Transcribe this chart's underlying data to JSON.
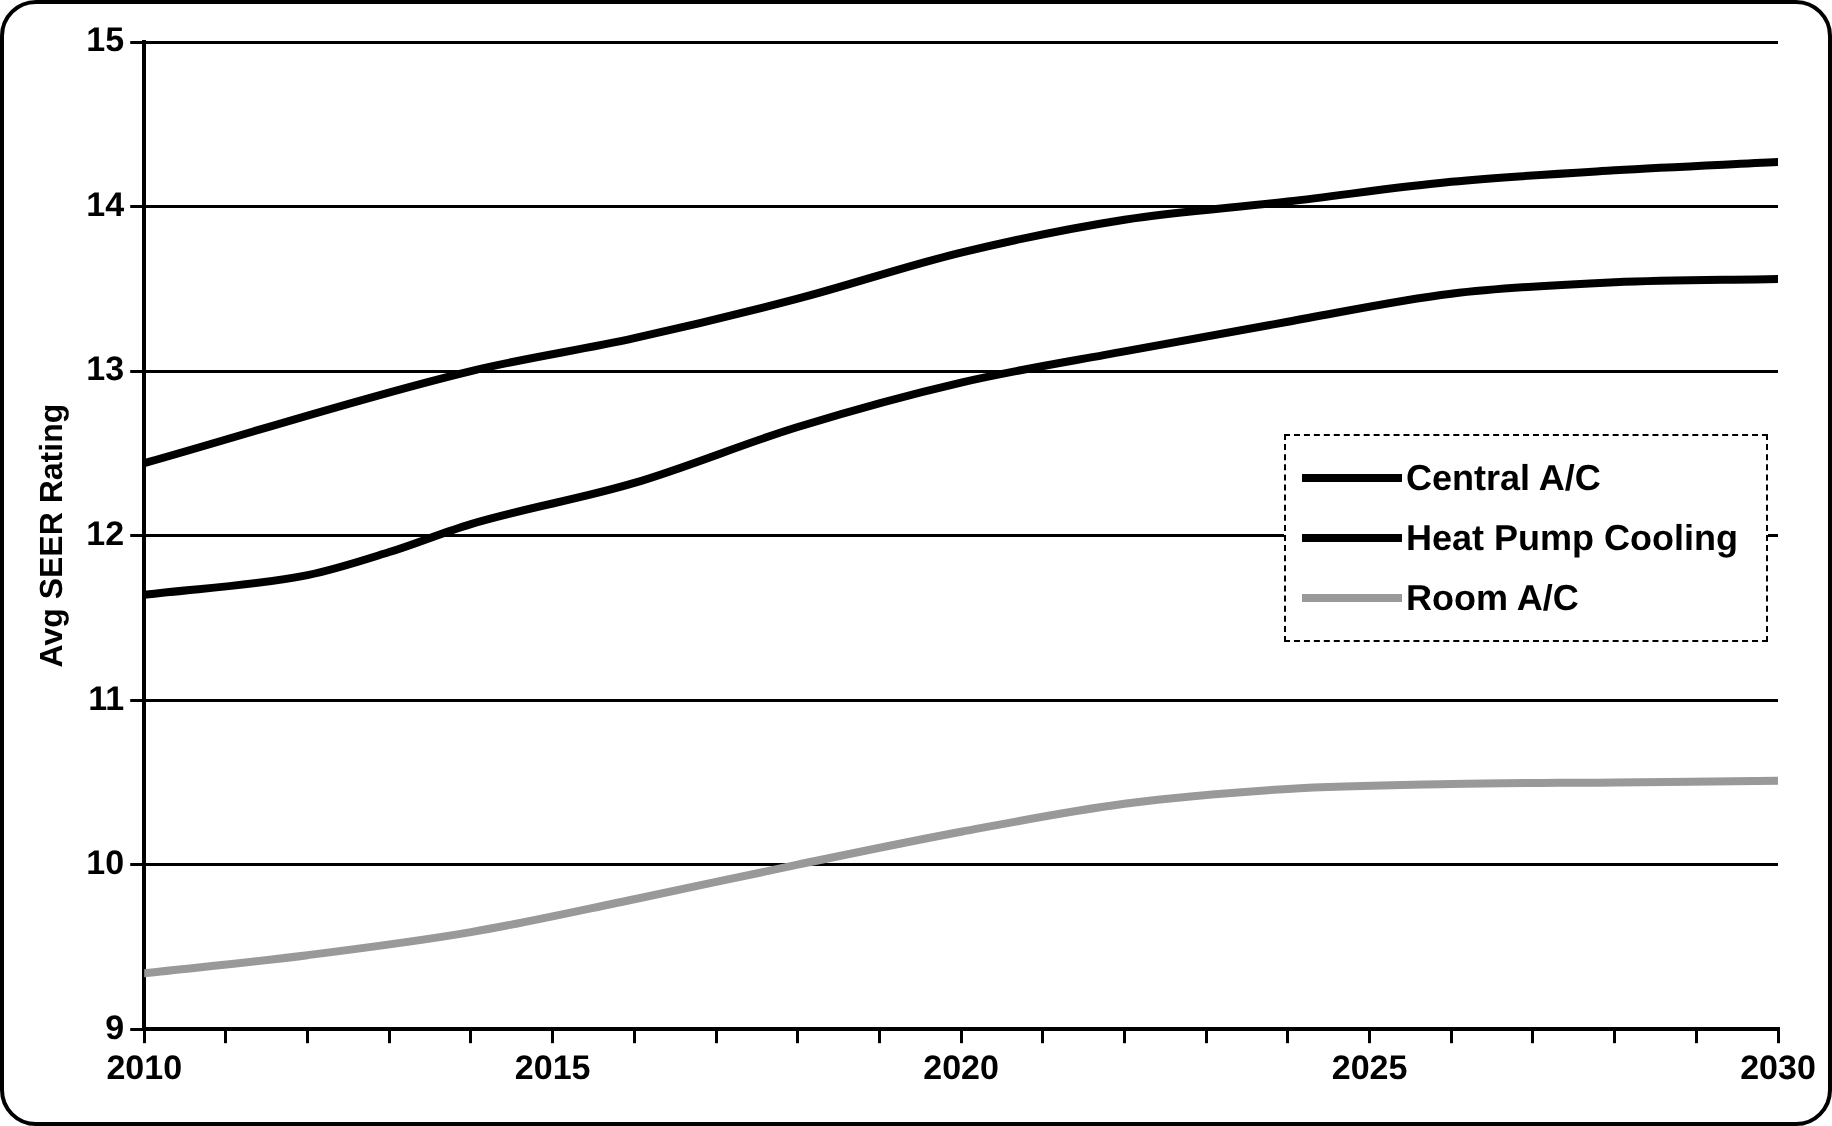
{
  "chart_data": {
    "type": "line",
    "ylabel": "Avg SEER Rating",
    "x": [
      2010,
      2012,
      2013,
      2014,
      2016,
      2018,
      2020,
      2022,
      2024,
      2026,
      2028,
      2030
    ],
    "series": [
      {
        "name": "Central A/C",
        "color": "#000000",
        "values": [
          12.44,
          null,
          null,
          13.0,
          13.2,
          13.44,
          13.72,
          13.92,
          14.03,
          14.15,
          14.22,
          14.27
        ]
      },
      {
        "name": "Heat Pump Cooling",
        "color": "#000000",
        "values": [
          11.64,
          11.76,
          11.9,
          12.07,
          12.32,
          12.66,
          12.93,
          13.12,
          13.3,
          13.47,
          13.54,
          13.56
        ]
      },
      {
        "name": "Room A/C",
        "color": "#999999",
        "values": [
          9.34,
          9.45,
          null,
          9.59,
          9.79,
          10.0,
          10.2,
          10.37,
          10.46,
          10.49,
          10.5,
          10.51
        ]
      }
    ],
    "xlim": [
      2010,
      2030
    ],
    "xticks": [
      2010,
      {
        "value": 2011,
        "label": null
      },
      {
        "value": 2012,
        "label": null
      },
      {
        "value": 2013,
        "label": null
      },
      {
        "value": 2014,
        "label": null
      },
      2015,
      {
        "value": 2016,
        "label": null
      },
      {
        "value": 2017,
        "label": null
      },
      {
        "value": 2018,
        "label": null
      },
      {
        "value": 2019,
        "label": null
      },
      2020,
      {
        "value": 2021,
        "label": null
      },
      {
        "value": 2022,
        "label": null
      },
      {
        "value": 2023,
        "label": null
      },
      {
        "value": 2024,
        "label": null
      },
      2025,
      {
        "value": 2026,
        "label": null
      },
      {
        "value": 2027,
        "label": null
      },
      {
        "value": 2028,
        "label": null
      },
      {
        "value": 2029,
        "label": null
      },
      2030
    ],
    "ylim": [
      9,
      15
    ],
    "yticks": [
      9,
      10,
      11,
      12,
      13,
      14,
      15
    ],
    "grid": "y",
    "legend": "right",
    "marker": "none",
    "line_style": "solid"
  }
}
